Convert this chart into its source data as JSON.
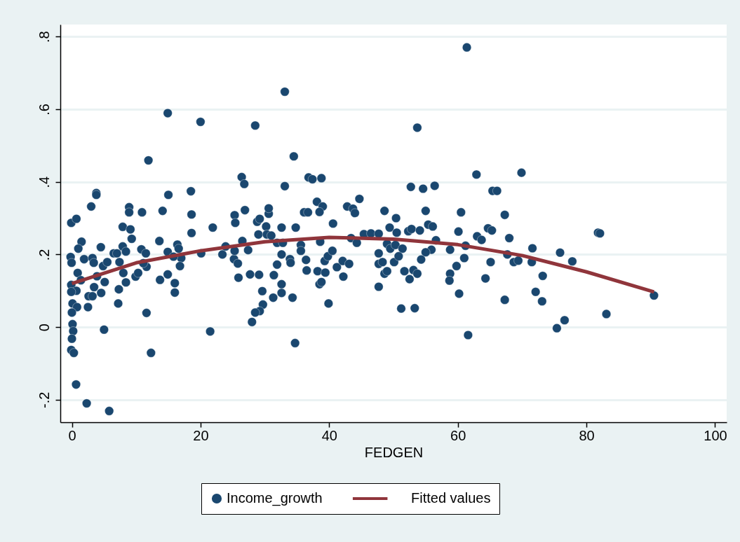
{
  "chart_data": {
    "type": "scatter",
    "xlabel": "FEDGEN",
    "xlim": [
      -1.8,
      101.8
    ],
    "ylim": [
      -0.262,
      0.833
    ],
    "xticks": [
      0,
      20,
      40,
      60,
      80,
      100
    ],
    "yticks": [
      {
        "value": -0.2,
        "label": "-.2"
      },
      0,
      {
        "value": 0.2,
        "label": ".2"
      },
      {
        "value": 0.4,
        "label": ".4"
      },
      {
        "value": 0.6,
        "label": ".6"
      },
      {
        "value": 0.8,
        "label": ".8"
      }
    ],
    "grid": "y",
    "legend": "bottom",
    "series": [
      {
        "name": "Income_growth",
        "marker": "circle",
        "color": "#1a476f",
        "x": [
          -0.1,
          0.7,
          -0.2,
          -0.05,
          0.9,
          1.5,
          1.0,
          1.9,
          3.2,
          3.4,
          4.5,
          -0.1,
          0.7,
          -0.1,
          1.4,
          0.1,
          0.8,
          0,
          0.1,
          0.2,
          0,
          -0.1,
          0.3,
          0.65,
          2.3,
          5.8,
          2.5,
          2.6,
          3.2,
          4.55,
          3.45,
          3.9,
          5.1,
          5.0,
          4.85,
          5.5,
          6.5,
          7.0,
          7.9,
          8.4,
          7.4,
          8.0,
          8.4,
          7.3,
          7.2,
          9.9,
          10.3,
          10.8,
          11.5,
          11.6,
          11.1,
          11.6,
          12.3,
          7.9,
          9.1,
          9.3,
          13.6,
          13.7,
          14.9,
          16.0,
          16.0,
          14.9,
          16.4,
          16.6,
          17.0,
          16.8,
          15.8,
          18.6,
          18.6,
          20.1,
          21.5,
          21.9,
          23.4,
          23.9,
          25.3,
          25.4,
          25.2,
          25.8,
          25.3,
          26.5,
          27.4,
          25.9,
          27.7,
          29.1,
          29.6,
          31.4,
          32.6,
          32.6,
          31.3,
          29.7,
          29.2,
          28.5,
          28.0,
          28.8,
          29.2,
          30.2,
          30.6,
          29.0,
          30.3,
          31.0,
          31.9,
          32.6,
          32.6,
          31.9,
          14.9,
          20.0,
          28.5,
          11.9,
          33.1,
          3.8,
          3.8,
          3.0,
          8.9,
          8.9,
          10.9,
          14.1,
          15.0,
          18.5,
          26.4,
          26.8,
          26.9,
          30.6,
          33.1,
          61.4,
          53.7,
          34.5,
          36.8,
          37.4,
          38.8,
          52.7,
          54.6,
          56.4,
          62.9,
          65.4,
          66.1,
          38.1,
          39.0,
          36.1,
          36.7,
          38.5,
          42.8,
          43.7,
          44.0,
          44.7,
          48.6,
          55.0,
          60.5,
          67.3,
          50.4,
          69.9,
          34.8,
          40.6,
          32.8,
          35.6,
          35.6,
          38.6,
          43.4,
          44.3,
          45.4,
          46.5,
          47.7,
          49.4,
          50.5,
          49.0,
          49.5,
          50.3,
          51.4,
          52.3,
          52.8,
          54.1,
          55.4,
          56.1,
          56.6,
          60.1,
          58.8,
          55.9,
          55.0,
          61.2,
          63.0,
          63.7,
          64.7,
          65.3,
          68.0,
          67.7,
          33.9,
          34.0,
          36.4,
          36.5,
          34.3,
          34.7,
          38.2,
          39.4,
          38.5,
          38.8,
          39.9,
          39.3,
          39.8,
          40.5,
          41.2,
          42.2,
          42.1,
          43.1,
          47.7,
          47.7,
          48.3,
          47.7,
          48.6,
          49.0,
          50.1,
          50.8,
          51.7,
          52.5,
          53.1,
          53.7,
          51.2,
          53.3,
          54.3,
          58.8,
          58.7,
          59.8,
          60.2,
          61.0,
          61.6,
          64.3,
          65.1,
          67.3,
          68.7,
          69.4,
          71.6,
          71.5,
          73.2,
          72.1,
          73.1,
          75.9,
          77.8,
          75.4,
          76.6,
          81.8,
          82.1,
          83.1,
          90.5
        ],
        "values": [
          0.287,
          0.298,
          0.193,
          0.177,
          0.149,
          0.235,
          0.216,
          0.187,
          0.19,
          0.177,
          0.22,
          0.116,
          0.1,
          0.097,
          0.129,
          0.065,
          0.055,
          0.04,
          0.008,
          -0.011,
          -0.032,
          -0.063,
          -0.071,
          -0.158,
          -0.21,
          -0.231,
          0.055,
          0.085,
          0.085,
          0.094,
          0.11,
          0.14,
          0.124,
          -0.007,
          0.168,
          0.179,
          0.203,
          0.203,
          0.222,
          0.208,
          0.179,
          0.149,
          0.123,
          0.104,
          0.065,
          0.139,
          0.149,
          0.214,
          0.203,
          0.166,
          0.176,
          0.039,
          -0.071,
          0.276,
          0.269,
          0.243,
          0.237,
          0.13,
          0.145,
          0.121,
          0.095,
          0.207,
          0.227,
          0.216,
          0.19,
          0.168,
          0.194,
          0.259,
          0.31,
          0.203,
          -0.012,
          0.274,
          0.2,
          0.222,
          0.308,
          0.287,
          0.187,
          0.175,
          0.21,
          0.237,
          0.212,
          0.136,
          0.145,
          0.144,
          0.099,
          0.143,
          0.118,
          0.094,
          0.081,
          0.062,
          0.044,
          0.04,
          0.014,
          0.29,
          0.298,
          0.277,
          0.312,
          0.255,
          0.255,
          0.252,
          0.232,
          0.274,
          0.2,
          0.172,
          0.589,
          0.565,
          0.555,
          0.459,
          0.648,
          0.369,
          0.364,
          0.332,
          0.33,
          0.316,
          0.316,
          0.32,
          0.364,
          0.374,
          0.413,
          0.394,
          0.322,
          0.327,
          0.388,
          0.77,
          0.549,
          0.47,
          0.412,
          0.407,
          0.41,
          0.386,
          0.381,
          0.389,
          0.42,
          0.375,
          0.375,
          0.345,
          0.332,
          0.316,
          0.316,
          0.317,
          0.332,
          0.326,
          0.314,
          0.353,
          0.32,
          0.32,
          0.316,
          0.309,
          0.3,
          0.425,
          0.274,
          0.285,
          0.232,
          0.226,
          0.21,
          0.235,
          0.245,
          0.232,
          0.256,
          0.258,
          0.257,
          0.274,
          0.26,
          0.229,
          0.216,
          0.226,
          0.216,
          0.264,
          0.27,
          0.266,
          0.282,
          0.277,
          0.239,
          0.263,
          0.213,
          0.213,
          0.206,
          0.224,
          0.25,
          0.24,
          0.272,
          0.266,
          0.245,
          0.2,
          0.187,
          0.177,
          0.185,
          0.156,
          0.081,
          -0.044,
          0.154,
          0.15,
          0.118,
          0.124,
          0.065,
          0.182,
          0.195,
          0.21,
          0.165,
          0.139,
          0.182,
          0.174,
          0.203,
          0.174,
          0.179,
          0.111,
          0.147,
          0.154,
          0.179,
          0.195,
          0.154,
          0.132,
          0.157,
          0.147,
          0.051,
          0.052,
          0.186,
          0.147,
          0.128,
          0.168,
          0.092,
          0.19,
          -0.022,
          0.134,
          0.179,
          0.075,
          0.179,
          0.183,
          0.217,
          0.179,
          0.141,
          0.097,
          0.071,
          0.205,
          0.181,
          -0.003,
          0.019,
          0.26,
          0.258,
          0.036,
          0.087
        ]
      },
      {
        "name": "Fitted values",
        "type": "line",
        "color": "#90353b",
        "x": [
          0,
          10,
          20,
          30,
          40,
          50,
          60,
          70,
          80,
          90.5
        ],
        "values": [
          0.12,
          0.177,
          0.21,
          0.235,
          0.247,
          0.242,
          0.227,
          0.197,
          0.152,
          0.097
        ]
      }
    ]
  }
}
